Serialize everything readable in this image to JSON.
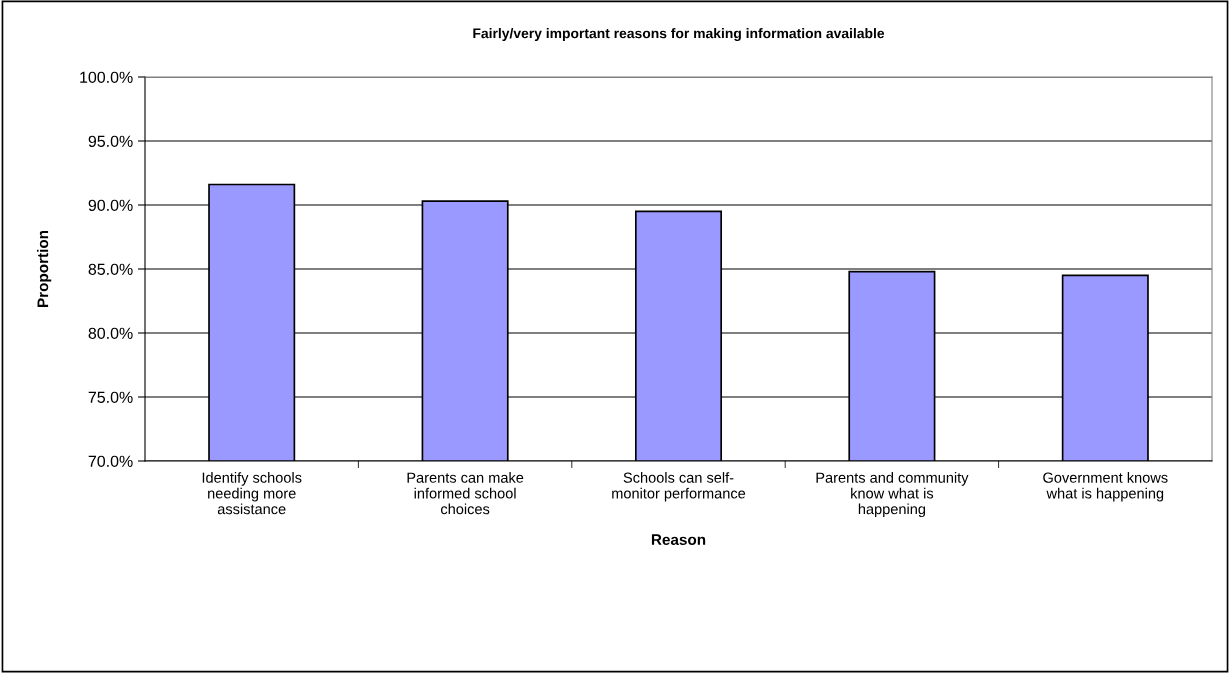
{
  "chart_data": {
    "type": "bar",
    "title": "Fairly/very important reasons for making information available",
    "xlabel": "Reason",
    "ylabel": "Proportion",
    "categories": [
      "Identify schools\nneeding more\nassistance",
      "Parents can make\ninformed school\nchoices",
      "Schools can self-\nmonitor performance",
      "Parents and community\nknow what is\nhappening",
      "Government knows\nwhat is happening"
    ],
    "values": [
      91.6,
      90.3,
      89.5,
      84.8,
      84.5
    ],
    "color": "#9999ff",
    "ylim": [
      70,
      100
    ],
    "yticks": [
      {
        "value": 70,
        "label": "70.0%"
      },
      {
        "value": 75,
        "label": "75.0%"
      },
      {
        "value": 80,
        "label": "80.0%"
      },
      {
        "value": 85,
        "label": "85.0%"
      },
      {
        "value": 90,
        "label": "90.0%"
      },
      {
        "value": 95,
        "label": "95.0%"
      },
      {
        "value": 100,
        "label": "100.0%"
      }
    ],
    "grid": "y"
  }
}
